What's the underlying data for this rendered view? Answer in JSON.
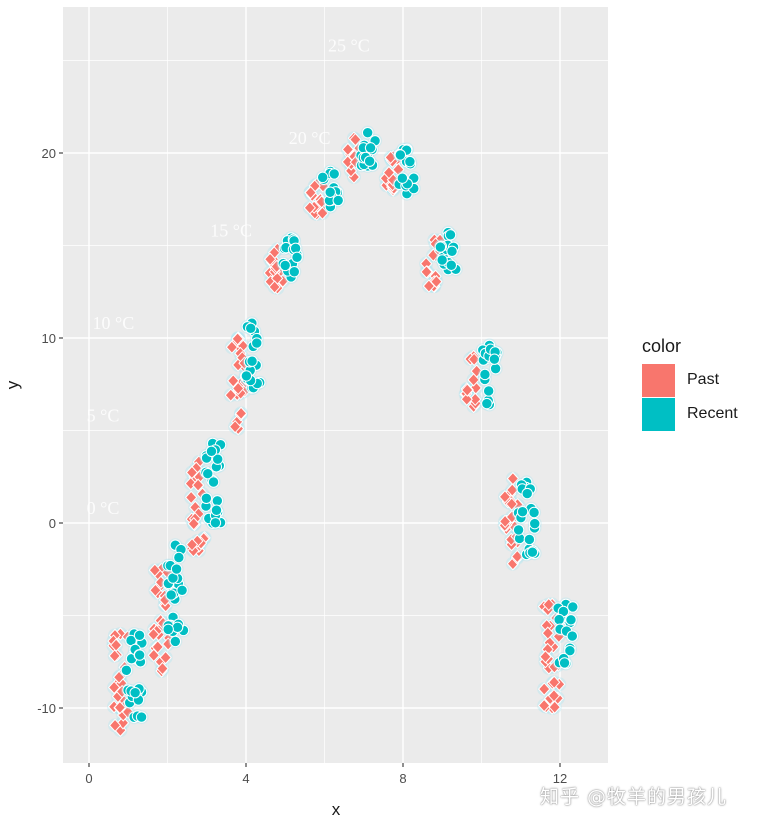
{
  "chart_data": {
    "type": "scatter",
    "title": "",
    "xlabel": "x",
    "ylabel": "y",
    "xlim": [
      -0.65,
      13.25
    ],
    "ylim": [
      -12.9,
      28
    ],
    "x_ticks": [
      0,
      4,
      8,
      12
    ],
    "y_ticks": [
      -10,
      0,
      10,
      20
    ],
    "grid": true,
    "legend": {
      "title": "color",
      "position": "right",
      "entries": [
        "Past",
        "Recent"
      ]
    },
    "colors": {
      "Past": "#F8766D",
      "Recent": "#00BFC4",
      "panel": "#EBEBEB",
      "grid": "#FFFFFF",
      "halo": "#A8E6F0"
    },
    "annotations": [
      {
        "text": "0 °C",
        "x": 0.5,
        "y": 0.8
      },
      {
        "text": "5 °C",
        "x": 0.5,
        "y": 5.8
      },
      {
        "text": "10 °C",
        "x": 0.65,
        "y": 10.8
      },
      {
        "text": "15 °C",
        "x": 3.65,
        "y": 15.8
      },
      {
        "text": "20 °C",
        "x": 5.65,
        "y": 20.8
      },
      {
        "text": "25 °C",
        "x": 6.65,
        "y": 25.8
      }
    ],
    "series": [
      {
        "name": "Past",
        "shape": "diamond",
        "clusters": [
          {
            "x": 0.8,
            "ymin": -11.2,
            "ymax": -6.0
          },
          {
            "x": 1.85,
            "ymin": -8.0,
            "ymax": -2.5
          },
          {
            "x": 2.8,
            "ymin": -1.5,
            "ymax": 3.3
          },
          {
            "x": 3.8,
            "ymin": 5.1,
            "ymax": 10.0
          },
          {
            "x": 4.8,
            "ymin": 12.7,
            "ymax": 14.8
          },
          {
            "x": 5.8,
            "ymin": 16.7,
            "ymax": 18.3
          },
          {
            "x": 6.75,
            "ymin": 18.7,
            "ymax": 20.8
          },
          {
            "x": 7.75,
            "ymin": 18.0,
            "ymax": 19.8
          },
          {
            "x": 8.8,
            "ymin": 12.8,
            "ymax": 15.3
          },
          {
            "x": 9.8,
            "ymin": 6.3,
            "ymax": 9.0
          },
          {
            "x": 10.8,
            "ymin": -2.2,
            "ymax": 2.4
          },
          {
            "x": 11.8,
            "ymin": -10.0,
            "ymax": -4.4
          }
        ]
      },
      {
        "name": "Recent",
        "shape": "circle",
        "clusters": [
          {
            "x": 1.15,
            "ymin": -10.5,
            "ymax": -6.0
          },
          {
            "x": 2.2,
            "ymin": -6.4,
            "ymax": -1.2
          },
          {
            "x": 3.15,
            "ymin": 0.0,
            "ymax": 4.3
          },
          {
            "x": 4.15,
            "ymin": 7.3,
            "ymax": 10.8
          },
          {
            "x": 5.15,
            "ymin": 13.3,
            "ymax": 15.4
          },
          {
            "x": 6.15,
            "ymin": 17.1,
            "ymax": 19.0
          },
          {
            "x": 7.1,
            "ymin": 19.3,
            "ymax": 21.1
          },
          {
            "x": 8.1,
            "ymin": 17.8,
            "ymax": 20.2
          },
          {
            "x": 9.15,
            "ymin": 13.7,
            "ymax": 15.7
          },
          {
            "x": 10.2,
            "ymin": 6.4,
            "ymax": 9.6
          },
          {
            "x": 11.15,
            "ymin": -1.7,
            "ymax": 2.2
          },
          {
            "x": 12.15,
            "ymin": -7.6,
            "ymax": -4.4
          }
        ]
      }
    ]
  },
  "watermark": "知乎 @牧羊的男孩儿"
}
